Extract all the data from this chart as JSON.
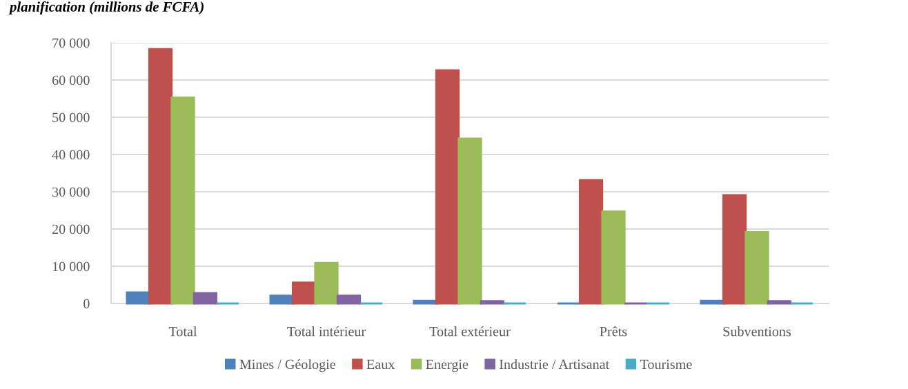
{
  "chart_data": {
    "type": "bar",
    "title": "planification (millions de FCFA)",
    "categories": [
      "Total",
      "Total intérieur",
      "Total extérieur",
      "Prêts",
      "Subventions"
    ],
    "series": [
      {
        "name": "Mines / Géologie",
        "color": "#4f81bd",
        "values": [
          3000,
          2100,
          700,
          0,
          700
        ]
      },
      {
        "name": "Eaux",
        "color": "#c0504d",
        "values": [
          68300,
          5600,
          62600,
          33100,
          29100
        ]
      },
      {
        "name": "Energie",
        "color": "#9bbb59",
        "values": [
          55300,
          10900,
          44300,
          24700,
          19200
        ]
      },
      {
        "name": "Industrie / Artisanat",
        "color": "#8064a2",
        "values": [
          2800,
          2100,
          600,
          0,
          600
        ]
      },
      {
        "name": "Tourisme",
        "color": "#4bacc6",
        "values": [
          0,
          0,
          0,
          0,
          0
        ]
      }
    ],
    "ylim": [
      0,
      70000
    ],
    "yticks": [
      {
        "value": 0,
        "label": "0"
      },
      {
        "value": 10000,
        "label": "10 000"
      },
      {
        "value": 20000,
        "label": "20 000"
      },
      {
        "value": 30000,
        "label": "30 000"
      },
      {
        "value": 40000,
        "label": "40 000"
      },
      {
        "value": 50000,
        "label": "50 000"
      },
      {
        "value": 60000,
        "label": "60 000"
      },
      {
        "value": 70000,
        "label": "70 000"
      }
    ],
    "grid": "y",
    "legend": "bottom"
  }
}
